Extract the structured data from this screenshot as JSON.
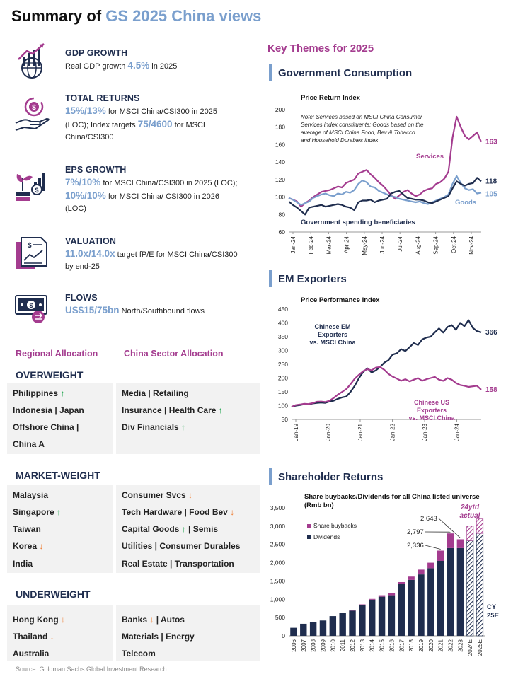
{
  "title": {
    "prefix": "Summary of ",
    "highlight": "GS 2025 China views"
  },
  "summary": {
    "gdp": {
      "heading": "GDP GROWTH",
      "text_before": "Real GDP growth ",
      "value": "4.5%",
      "text_after": " in 2025"
    },
    "returns": {
      "heading": "TOTAL RETURNS",
      "value1": "15%/13%",
      "text1": " for MSCI China/CSI300 in 2025 (LOC); Index targets ",
      "value2": "75/4600",
      "text2": " for MSCI China/CSI300"
    },
    "eps": {
      "heading": "EPS GROWTH",
      "value1": "7%/10%",
      "text1": " for MSCI China/CSI300 in 2025 (LOC); ",
      "value2": "10%/10%",
      "text2": " for MSCI China/ CSI300 in 2026 (LOC)"
    },
    "valuation": {
      "heading": "VALUATION",
      "value": "11.0x/14.0x",
      "text": " target fP/E for MSCI China/CSI300 by end-25"
    },
    "flows": {
      "heading": "FLOWS",
      "value": "US$15/75bn",
      "text": " North/Southbound flows"
    }
  },
  "allocation": {
    "regional_header": "Regional Allocation",
    "sector_header": "China Sector Allocation",
    "overweight": {
      "label": "OVERWEIGHT",
      "regional": [
        "Philippines",
        "Indonesia | Japan",
        "Offshore China |",
        "China A"
      ],
      "sector": [
        "Media  |  Retailing",
        "Insurance | Health Care",
        "Div Financials"
      ]
    },
    "marketweight": {
      "label": "MARKET-WEIGHT",
      "regional": [
        "Malaysia",
        "Singapore",
        "Taiwan",
        "Korea",
        "India"
      ],
      "sector": [
        "Consumer Svcs",
        "Tech Hardware | Food Bev",
        "Capital Goods",
        "| Semis",
        "Utilities | Consumer Durables",
        "Real Estate | Transportation"
      ]
    },
    "underweight": {
      "label": "UNDERWEIGHT",
      "regional": [
        "Hong Kong",
        "Thailand",
        "Australia"
      ],
      "sector": [
        "Banks",
        "|  Autos",
        "Materials | Energy",
        "Telecom"
      ]
    },
    "arrows": {
      "up": "↑",
      "down": "↓"
    }
  },
  "source": "Source: Goldman Sachs Global Investment Research",
  "right": {
    "key_themes": "Key Themes for 2025",
    "sections": [
      "Government Consumption",
      "EM Exporters",
      "Shareholder Returns"
    ]
  },
  "colors": {
    "navy": "#1f2d4e",
    "blue": "#7a9fcd",
    "purple": "#a43c8f",
    "green": "#1aa34a",
    "orange": "#ee7b30"
  },
  "chart_data": [
    {
      "type": "line",
      "title": "Price Return Index",
      "note": [
        "Note: Services based on MSCI China Consumer",
        "Services index constituents; Goods based on the",
        "average of MSCI China Food, Bev & Tobacco",
        "and Household Durables index"
      ],
      "x_ticks": [
        "Jan-24",
        "Feb-24",
        "Mar-24",
        "Apr-24",
        "May-24",
        "Jun-24",
        "Jul-24",
        "Aug-24",
        "Sep-24",
        "Oct-24",
        "Nov-24"
      ],
      "ylim": [
        60,
        200
      ],
      "y_ticks": [
        "60",
        "80",
        "100",
        "120",
        "140",
        "160",
        "180",
        "200"
      ],
      "series": [
        {
          "name": "Services",
          "color": "#a43c8f",
          "end_label": "163",
          "values": [
            99,
            97,
            95,
            89,
            93,
            96,
            100,
            103,
            106,
            107,
            108,
            110,
            112,
            111,
            116,
            118,
            120,
            127,
            129,
            131,
            126,
            122,
            117,
            113,
            108,
            102,
            98,
            102,
            106,
            108,
            104,
            101,
            103,
            107,
            109,
            110,
            115,
            117,
            121,
            129,
            168,
            192,
            180,
            170,
            166,
            170,
            174,
            163
          ]
        },
        {
          "name": "Goods",
          "color": "#7a9fcd",
          "end_label": "105",
          "values": [
            99,
            97,
            94,
            91,
            93,
            95,
            99,
            101,
            103,
            104,
            102,
            101,
            104,
            103,
            106,
            105,
            108,
            115,
            119,
            117,
            112,
            111,
            107,
            105,
            103,
            101,
            100,
            98,
            97,
            96,
            95,
            94,
            95,
            93,
            92,
            94,
            96,
            98,
            100,
            103,
            115,
            124,
            116,
            110,
            108,
            109,
            104,
            105
          ]
        },
        {
          "name": "Government spending beneficiaries",
          "color": "#1f2d4e",
          "end_label": "118",
          "values": [
            95,
            91,
            88,
            84,
            80,
            88,
            89,
            90,
            91,
            89,
            90,
            91,
            92,
            91,
            89,
            88,
            85,
            94,
            96,
            96,
            97,
            94,
            96,
            97,
            98,
            104,
            106,
            107,
            103,
            99,
            98,
            97,
            97,
            96,
            94,
            93,
            95,
            97,
            99,
            101,
            110,
            118,
            115,
            113,
            115,
            116,
            122,
            118
          ]
        }
      ]
    },
    {
      "type": "line",
      "title": "Price Performance Index",
      "x_ticks": [
        "Jan-19",
        "Jan-20",
        "Jan-21",
        "Jan-22",
        "Jan-23",
        "Jan-24"
      ],
      "ylim": [
        50,
        450
      ],
      "y_ticks": [
        "50",
        "100",
        "150",
        "200",
        "250",
        "300",
        "350",
        "400",
        "450"
      ],
      "series": [
        {
          "name": "Chinese EM Exporters vs. MSCI China",
          "label_lines": [
            "Chinese EM",
            "Exporters",
            "vs. MSCI China"
          ],
          "color": "#1f2d4e",
          "end_label": "366",
          "values": [
            96,
            100,
            102,
            105,
            104,
            108,
            110,
            111,
            110,
            115,
            118,
            125,
            130,
            133,
            150,
            172,
            200,
            222,
            235,
            220,
            228,
            240,
            256,
            265,
            285,
            290,
            305,
            298,
            312,
            327,
            320,
            340,
            347,
            350,
            366,
            380,
            365,
            385,
            392,
            375,
            400,
            388,
            410,
            382,
            370,
            366
          ]
        },
        {
          "name": "Chinese US Exporters vs. MSCI China",
          "label_lines": [
            "Chinese US",
            "Exporters",
            "vs. MSCI China"
          ],
          "color": "#a43c8f",
          "end_label": "158",
          "values": [
            96,
            102,
            104,
            107,
            106,
            109,
            114,
            115,
            113,
            118,
            128,
            140,
            150,
            160,
            178,
            198,
            212,
            225,
            232,
            228,
            238,
            240,
            230,
            215,
            205,
            198,
            190,
            196,
            188,
            194,
            200,
            190,
            196,
            200,
            204,
            194,
            190,
            200,
            194,
            182,
            175,
            172,
            168,
            170,
            172,
            158
          ]
        }
      ]
    },
    {
      "type": "bar",
      "title": "Share buybacks/Dividends for all China listed universe",
      "subtitle": "(Rmb bn)",
      "categories": [
        "2006",
        "2007",
        "2008",
        "2009",
        "2010",
        "2011",
        "2012",
        "2013",
        "2014",
        "2015",
        "2016",
        "2017",
        "2018",
        "2019",
        "2020",
        "2021",
        "2022",
        "2023",
        "2024E",
        "2025E"
      ],
      "series": [
        {
          "name": "Dividends",
          "color": "#1f2d4e",
          "values": [
            220,
            330,
            370,
            420,
            540,
            630,
            690,
            840,
            990,
            1070,
            1110,
            1420,
            1530,
            1680,
            1850,
            2050,
            2400,
            2400,
            2600,
            2800
          ]
        },
        {
          "name": "Share buybacks",
          "color": "#a43c8f",
          "values": [
            0,
            0,
            0,
            0,
            0,
            0,
            10,
            20,
            20,
            40,
            50,
            50,
            90,
            130,
            150,
            280,
            400,
            240,
            400,
            400
          ]
        }
      ],
      "hatched_categories": [
        "2024E",
        "2025E"
      ],
      "data_labels": [
        {
          "category": "2021",
          "text": "2,336"
        },
        {
          "category": "2022",
          "text": "2,797"
        },
        {
          "category": "2023",
          "text": "2,643"
        }
      ],
      "annotations": [
        "24ytd",
        "actual",
        "CY",
        "25E"
      ],
      "ylim": [
        0,
        3500
      ],
      "y_ticks": [
        "0",
        "500",
        "1,000",
        "1,500",
        "2,000",
        "2,500",
        "3,000",
        "3,500"
      ]
    }
  ]
}
